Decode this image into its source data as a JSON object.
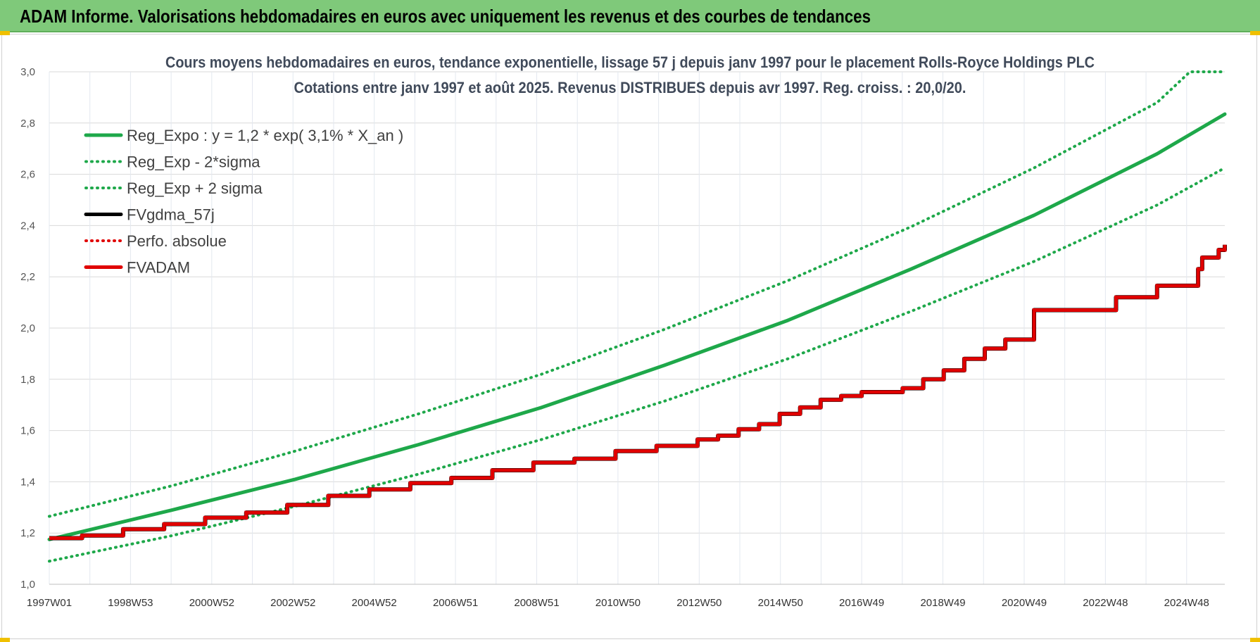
{
  "banner": {
    "title": "ADAM Informe. Valorisations hebdomadaires en euros avec uniquement les revenus et des courbes de tendances"
  },
  "chart_data": {
    "type": "line",
    "title_line1": "Cours moyens hebdomadaires en euros, tendance exponentielle, lissage 57 j depuis janv 1997 pour le placement Rolls-Royce Holdings PLC",
    "title_line2": "Cotations entre janv 1997 et août 2025.  Revenus DISTRIBUES depuis avr 1997. Reg. croiss. : 20,0/20.",
    "ylim": [
      1.0,
      3.0
    ],
    "xlim": [
      1997.0,
      2025.65
    ],
    "y_ticks": [
      "1,0",
      "1,2",
      "1,4",
      "1,6",
      "1,8",
      "2,0",
      "2,2",
      "2,4",
      "2,6",
      "2,8",
      "3,0"
    ],
    "x_ticks": [
      "1997W01",
      "1998W53",
      "2000W52",
      "2002W52",
      "2004W52",
      "2006W51",
      "2008W51",
      "2010W50",
      "2012W50",
      "2014W50",
      "2016W49",
      "2018W49",
      "2020W49",
      "2022W48",
      "2024W48"
    ],
    "grid": true,
    "legend_position": "top-left",
    "legend": [
      {
        "label": "Reg_Expo : y = 1,2 * exp( 3,1% *  X_an )",
        "color": "#1ea84a",
        "style": "solid"
      },
      {
        "label": "Reg_Exp - 2*sigma",
        "color": "#1ea84a",
        "style": "dotted"
      },
      {
        "label": "Reg_Exp + 2 sigma",
        "color": "#1ea84a",
        "style": "dotted"
      },
      {
        "label": "FVgdma_57j",
        "color": "#000000",
        "style": "solid"
      },
      {
        "label": "Perfo. absolue",
        "color": "#e00000",
        "style": "dotted"
      },
      {
        "label": "FVADAM",
        "color": "#e00000",
        "style": "solid"
      }
    ],
    "series": [
      {
        "name": "Reg_Expo : y = 1,2 * exp( 3,1% *  X_an )",
        "x": [
          1997.0,
          2000.0,
          2003.0,
          2006.0,
          2009.0,
          2012.0,
          2015.0,
          2018.0,
          2021.0,
          2024.0,
          2025.65
        ],
        "y": [
          1.175,
          1.29,
          1.41,
          1.545,
          1.69,
          1.855,
          2.03,
          2.23,
          2.44,
          2.68,
          2.835
        ]
      },
      {
        "name": "Reg_Exp - 2*sigma",
        "x": [
          1997.0,
          2000.0,
          2003.0,
          2006.0,
          2009.0,
          2012.0,
          2015.0,
          2018.0,
          2021.0,
          2024.0,
          2025.65
        ],
        "y": [
          1.09,
          1.19,
          1.305,
          1.43,
          1.565,
          1.715,
          1.88,
          2.065,
          2.26,
          2.48,
          2.625
        ]
      },
      {
        "name": "Reg_Exp + 2 sigma",
        "x": [
          1997.0,
          2000.0,
          2003.0,
          2006.0,
          2009.0,
          2012.0,
          2015.0,
          2018.0,
          2021.0,
          2024.0,
          2024.8,
          2025.65
        ],
        "y": [
          1.265,
          1.385,
          1.52,
          1.665,
          1.82,
          1.995,
          2.185,
          2.395,
          2.625,
          2.88,
          3.0,
          3.0
        ]
      },
      {
        "name": "FVADAM",
        "x": [
          1997.0,
          1997.8,
          1998.8,
          1999.8,
          2000.8,
          2001.8,
          2002.8,
          2003.8,
          2004.8,
          2005.8,
          2006.8,
          2007.8,
          2008.8,
          2009.8,
          2010.8,
          2011.8,
          2012.8,
          2013.3,
          2013.8,
          2014.3,
          2014.8,
          2015.3,
          2015.8,
          2016.3,
          2016.8,
          2017.8,
          2018.3,
          2018.8,
          2019.3,
          2019.8,
          2020.3,
          2021.0,
          2023.0,
          2024.0,
          2025.0,
          2025.1,
          2025.5,
          2025.65
        ],
        "y": [
          1.18,
          1.19,
          1.215,
          1.235,
          1.26,
          1.28,
          1.31,
          1.345,
          1.37,
          1.395,
          1.415,
          1.445,
          1.475,
          1.49,
          1.52,
          1.54,
          1.565,
          1.58,
          1.605,
          1.625,
          1.665,
          1.69,
          1.72,
          1.735,
          1.75,
          1.765,
          1.8,
          1.835,
          1.88,
          1.92,
          1.955,
          2.07,
          2.12,
          2.165,
          2.23,
          2.275,
          2.305,
          2.325
        ]
      }
    ]
  }
}
